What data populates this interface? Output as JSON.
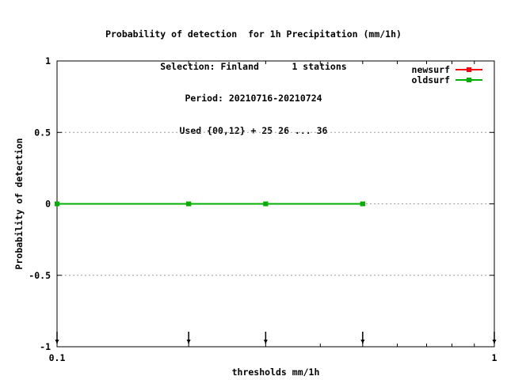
{
  "chart_data": {
    "type": "line",
    "title_lines": [
      "Probability of detection  for 1h Precipitation (mm/1h)",
      "Selection: Finland      1 stations",
      "Period: 20210716-20210724",
      "Used {00,12} + 25 26 ... 36"
    ],
    "xlabel": "thresholds mm/1h",
    "ylabel": "Probability of detection",
    "xscale": "log",
    "xlim": [
      0.1,
      1
    ],
    "ylim": [
      -1,
      1
    ],
    "xtick_labels": [
      {
        "value": 0.1,
        "label": "0.1"
      },
      {
        "value": 1,
        "label": "1"
      }
    ],
    "ytick_labels": [
      {
        "value": 1,
        "label": "1"
      },
      {
        "value": 0.5,
        "label": "0.5"
      },
      {
        "value": 0,
        "label": "0"
      },
      {
        "value": -0.5,
        "label": "-0.5"
      },
      {
        "value": -1,
        "label": "-1"
      }
    ],
    "grid": "horizontal dotted",
    "legend_position": "top-right",
    "series": [
      {
        "name": "newsurf",
        "color": "#ff0000",
        "x": [
          0.1,
          0.2,
          0.3,
          0.5
        ],
        "y": [
          0,
          0,
          0,
          0
        ]
      },
      {
        "name": "oldsurf",
        "color": "#00b000",
        "x": [
          0.1,
          0.2,
          0.3,
          0.5
        ],
        "y": [
          0,
          0,
          0,
          0
        ]
      }
    ],
    "threshold_markers_x": [
      0.1,
      0.2,
      0.3,
      0.5,
      1
    ]
  }
}
